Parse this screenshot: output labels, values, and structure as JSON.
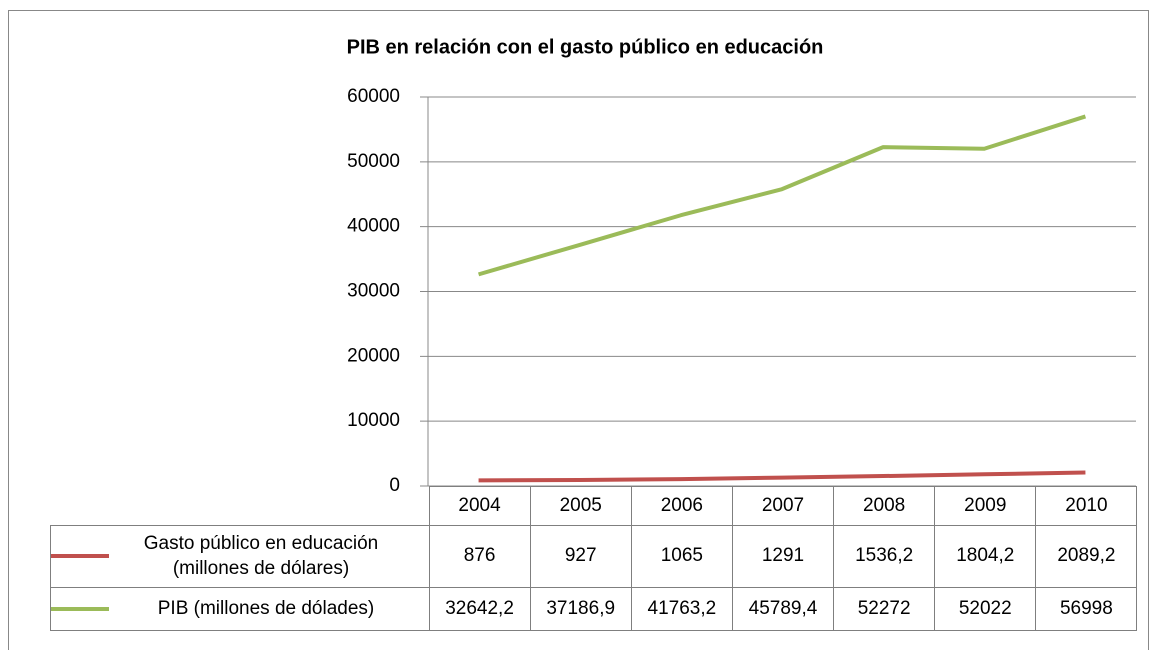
{
  "chart_data": {
    "type": "line",
    "title": "PIB en relación con el gasto público en educación",
    "categories": [
      "2004",
      "2005",
      "2006",
      "2007",
      "2008",
      "2009",
      "2010"
    ],
    "series": [
      {
        "name": "Gasto público en educación (millones de dólares)",
        "color": "#c0504d",
        "values": [
          876,
          927,
          1065,
          1291,
          1536.2,
          1804.2,
          2089.2
        ],
        "value_labels": [
          "876",
          "927",
          "1065",
          "1291",
          "1536,2",
          "1804,2",
          "2089,2"
        ]
      },
      {
        "name": "PIB (millones de dólades)",
        "color": "#9bbb59",
        "values": [
          32642.2,
          37186.9,
          41763.2,
          45789.4,
          52272,
          52022,
          56998
        ],
        "value_labels": [
          "32642,2",
          "37186,9",
          "41763,2",
          "45789,4",
          "52272",
          "52022",
          "56998"
        ]
      }
    ],
    "ylim": [
      0,
      60000
    ],
    "yticks": [
      0,
      10000,
      20000,
      30000,
      40000,
      50000,
      60000
    ],
    "grid": true,
    "legend": "table"
  }
}
